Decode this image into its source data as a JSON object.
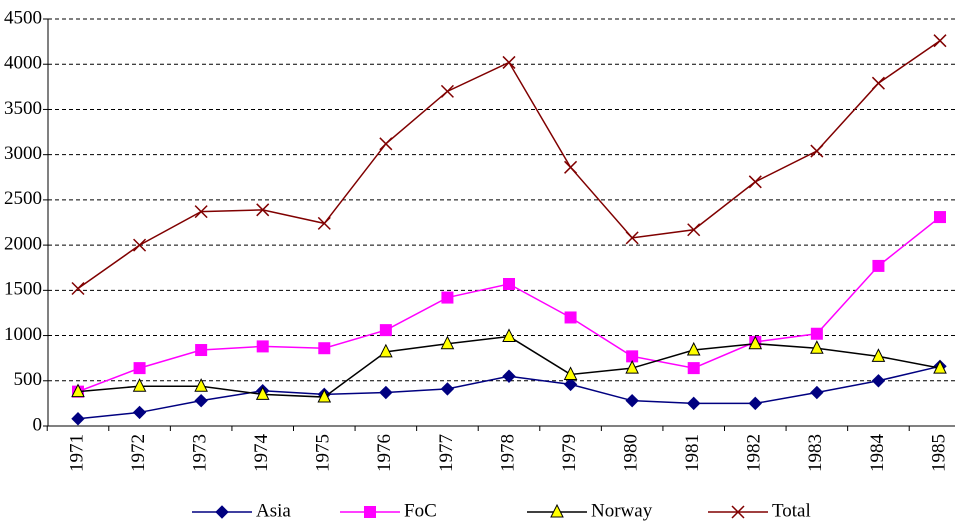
{
  "chart_data": {
    "type": "line",
    "categories": [
      "1971",
      "1972",
      "1973",
      "1974",
      "1975",
      "1976",
      "1977",
      "1978",
      "1979",
      "1980",
      "1981",
      "1982",
      "1983",
      "1984",
      "1985"
    ],
    "series": [
      {
        "name": "Asia",
        "color": "#000080",
        "marker": "diamond",
        "values": [
          80,
          150,
          280,
          390,
          350,
          370,
          410,
          550,
          460,
          280,
          250,
          250,
          370,
          500,
          660
        ]
      },
      {
        "name": "FoC",
        "color": "#ff00ff",
        "marker": "square",
        "values": [
          380,
          640,
          840,
          880,
          860,
          1060,
          1420,
          1570,
          1200,
          770,
          640,
          930,
          1020,
          1770,
          2310
        ]
      },
      {
        "name": "Norway",
        "color": "#000000",
        "marker": "triangle",
        "values": [
          380,
          440,
          440,
          350,
          320,
          820,
          910,
          990,
          570,
          640,
          840,
          910,
          860,
          770,
          640
        ]
      },
      {
        "name": "Total",
        "color": "#800000",
        "marker": "x",
        "values": [
          1520,
          2000,
          2370,
          2390,
          2240,
          3120,
          3700,
          4020,
          2860,
          2080,
          2170,
          2700,
          3040,
          3790,
          4260
        ]
      }
    ],
    "ylim": [
      0,
      4500
    ],
    "yticks": [
      0,
      500,
      1000,
      1500,
      2000,
      2500,
      3000,
      3500,
      4000,
      4500
    ],
    "grid": true,
    "legend": "bottom"
  }
}
